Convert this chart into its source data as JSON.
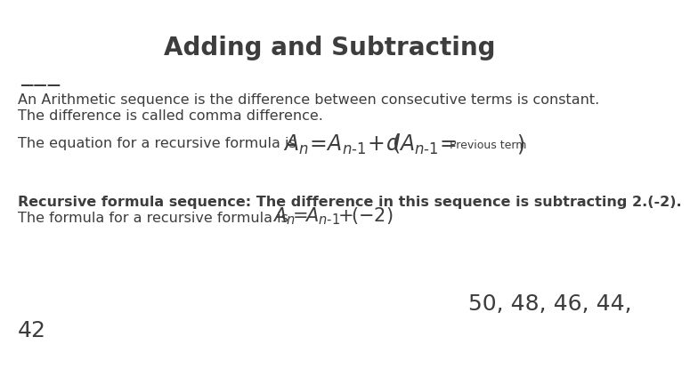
{
  "title": "Adding and Subtracting",
  "bg_color": "#ffffff",
  "text_color": "#3d3d3d",
  "title_fontsize": 20,
  "body_fontsize": 11.5,
  "bold_fontsize": 11.5,
  "formula_large_fontsize": 17,
  "formula_small_fontsize": 9,
  "sequence_fontsize": 18,
  "line1": "An Arithmetic sequence is the difference between consecutive terms is constant.",
  "line2": "The difference is called comma difference.",
  "line3_pre": "The equation for a recursive formula is ",
  "line4": "Recursive formula sequence: The difference in this sequence is subtracting 2.(-2).",
  "line5_pre": "The formula for a recursive formula is ",
  "sequence": "50, 48, 46, 44,",
  "last": "42",
  "dashes": "___"
}
